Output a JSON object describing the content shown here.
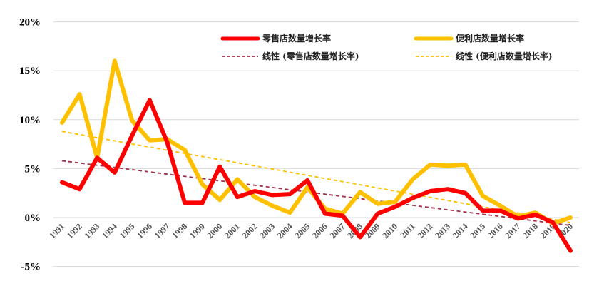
{
  "chart_data": {
    "type": "line",
    "title": "",
    "xlabel": "",
    "ylabel": "",
    "ylim": [
      -5,
      20
    ],
    "yticks": [
      "20%",
      "15%",
      "10%",
      "5%",
      "0%",
      "-5%"
    ],
    "ytick_values": [
      20,
      15,
      10,
      5,
      0,
      -5
    ],
    "grid": true,
    "legend_position": "top-right",
    "categories": [
      "1991",
      "1992",
      "1993",
      "1994",
      "1995",
      "1996",
      "1997",
      "1998",
      "1999",
      "2000",
      "2001",
      "2002",
      "2003",
      "2004",
      "2005",
      "2006",
      "2007",
      "2008",
      "2009",
      "2010",
      "2011",
      "2012",
      "2013",
      "2014",
      "2015",
      "2016",
      "2017",
      "2018",
      "2019",
      "2020"
    ],
    "series": [
      {
        "name": "零售店数量增长率",
        "color": "#ff0000",
        "style": "solid",
        "values": [
          3.6,
          2.9,
          6.1,
          4.6,
          8.4,
          12.0,
          7.7,
          1.5,
          1.5,
          5.2,
          2.1,
          2.7,
          2.3,
          2.4,
          3.8,
          0.4,
          0.2,
          -2.0,
          0.4,
          1.1,
          2.0,
          2.7,
          2.9,
          2.5,
          0.7,
          0.7,
          -0.1,
          0.3,
          -0.5,
          -3.4
        ]
      },
      {
        "name": "便利店数量增长率",
        "color": "#ffc000",
        "style": "solid",
        "values": [
          9.7,
          12.6,
          6.1,
          16.0,
          9.9,
          7.9,
          8.0,
          6.9,
          3.4,
          1.8,
          3.9,
          2.1,
          1.2,
          0.5,
          3.1,
          0.9,
          0.4,
          2.6,
          1.4,
          1.6,
          3.9,
          5.4,
          5.3,
          5.4,
          2.2,
          1.2,
          0.1,
          0.5,
          -0.6,
          0.0
        ]
      },
      {
        "name": "线性（零售店数量增长率）",
        "color": "#a0304a",
        "style": "dashed",
        "trend": {
          "start": 5.8,
          "end": -0.8
        }
      },
      {
        "name": "线性（便利店数量增长率）",
        "color": "#ffc000",
        "style": "dashed",
        "trend": {
          "start": 8.8,
          "end": -0.5
        }
      }
    ]
  },
  "legend": {
    "items": [
      {
        "label": "零售店数量增长率",
        "color": "#ff0000",
        "style": "solid"
      },
      {
        "label": "便利店数量增长率",
        "color": "#ffc000",
        "style": "solid"
      },
      {
        "label": "线性 (零售店数量增长率)",
        "color": "#a0304a",
        "style": "dashed"
      },
      {
        "label": "线性 (便利店数量增长率)",
        "color": "#ffc000",
        "style": "dashed"
      }
    ]
  }
}
